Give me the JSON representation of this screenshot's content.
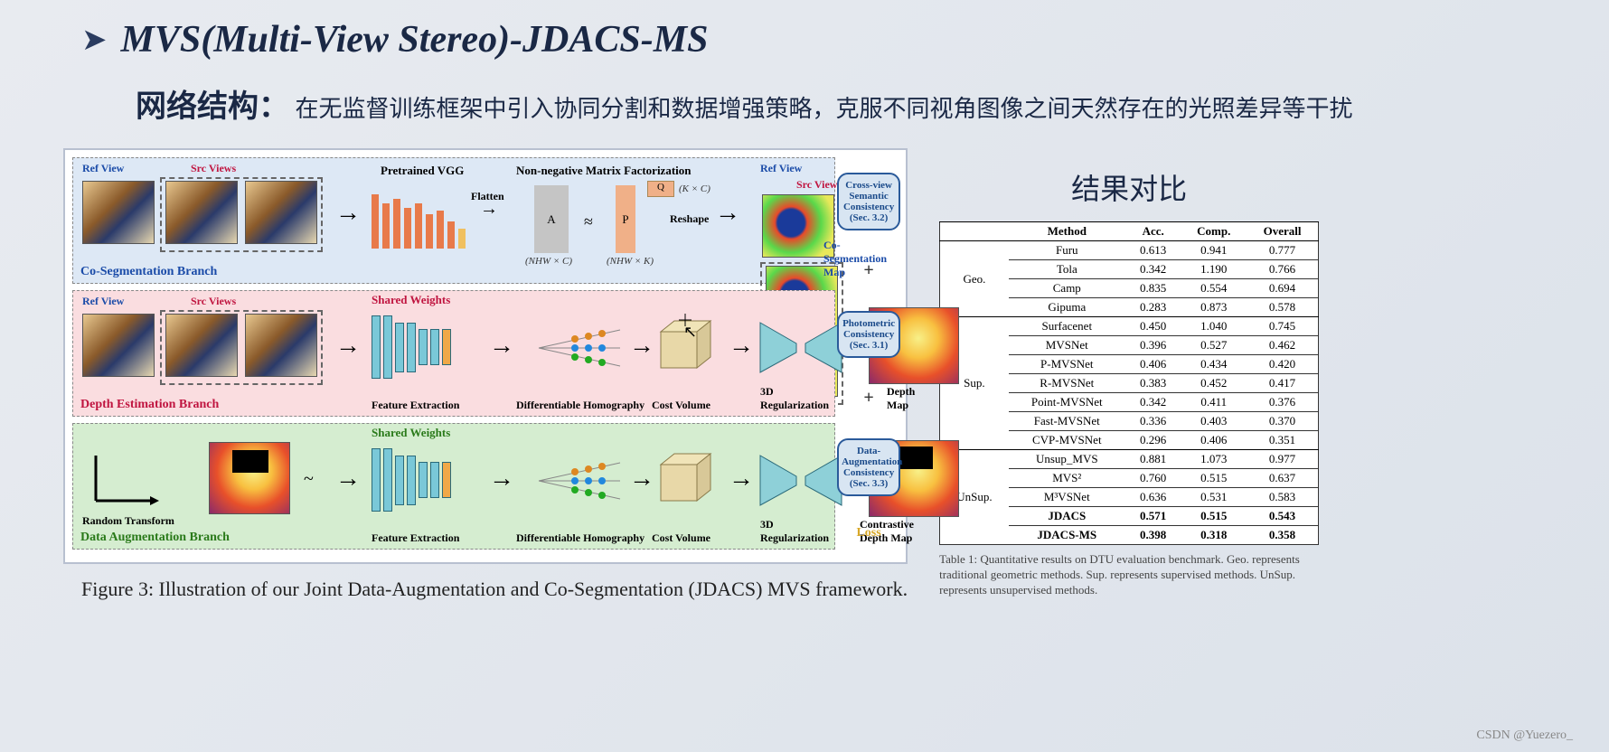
{
  "title": "MVS(Multi-View Stereo)-JDACS-MS",
  "subtitle_label": "网络结构：",
  "subtitle_text": "在无监督训练框架中引入协同分割和数据增强策略，克服不同视角图像之间天然存在的光照差异等干扰",
  "figure": {
    "branches": {
      "coseg": {
        "label": "Co-Segmentation Branch",
        "refview": "Ref View",
        "srcview": "Src Views",
        "pretrained": "Pretrained VGG",
        "flatten": "Flatten",
        "nmf": "Non-negative Matrix Factorization",
        "matA": "A",
        "matP": "P",
        "matQ": "Q",
        "dimA": "(NHW × C)",
        "dimP": "(NHW × K)",
        "dimQ": "(K × C)",
        "reshape": "Reshape",
        "map_ref": "Ref View",
        "map_src": "Src Views",
        "map_label": "Co-Segmentation Map",
        "bg_color": "#dde8f5",
        "vgg_heights": [
          60,
          50,
          55,
          45,
          50,
          38,
          42,
          30,
          22
        ]
      },
      "depth": {
        "label": "Depth Estimation Branch",
        "refview": "Ref View",
        "srcview": "Src Views",
        "shared": "Shared Weights",
        "feat": "Feature Extraction",
        "homog": "Differentiable Homography",
        "cost": "Cost Volume",
        "reg": "3D Regularization",
        "out": "Depth Map",
        "bg_color": "#fadde0"
      },
      "aug": {
        "label": "Data Augmentation Branch",
        "rand": "Random Transform",
        "shared": "Shared Weights",
        "feat": "Feature Extraction",
        "homog": "Differentiable Homography",
        "cost": "Cost Volume",
        "reg": "3D Regularization",
        "out": "Contrastive Depth Map",
        "bg_color": "#d5edd0"
      }
    },
    "loss": {
      "l1": "Cross-view Semantic Consistency (Sec. 3.2)",
      "l2": "Photometric Consistency (Sec. 3.1)",
      "l3": "Data-Augmentation Consistency (Sec. 3.3)",
      "label": "Loss"
    },
    "caption": "Figure 3: Illustration of our Joint Data-Augmentation and Co-Segmentation (JDACS) MVS framework."
  },
  "results": {
    "title": "结果对比",
    "headers": [
      "",
      "Method",
      "Acc.",
      "Comp.",
      "Overall"
    ],
    "groups": [
      {
        "name": "Geo.",
        "rows": [
          [
            "Furu",
            "0.613",
            "0.941",
            "0.777"
          ],
          [
            "Tola",
            "0.342",
            "1.190",
            "0.766"
          ],
          [
            "Camp",
            "0.835",
            "0.554",
            "0.694"
          ],
          [
            "Gipuma",
            "0.283",
            "0.873",
            "0.578"
          ]
        ]
      },
      {
        "name": "Sup.",
        "rows": [
          [
            "Surfacenet",
            "0.450",
            "1.040",
            "0.745"
          ],
          [
            "MVSNet",
            "0.396",
            "0.527",
            "0.462"
          ],
          [
            "P-MVSNet",
            "0.406",
            "0.434",
            "0.420"
          ],
          [
            "R-MVSNet",
            "0.383",
            "0.452",
            "0.417"
          ],
          [
            "Point-MVSNet",
            "0.342",
            "0.411",
            "0.376"
          ],
          [
            "Fast-MVSNet",
            "0.336",
            "0.403",
            "0.370"
          ],
          [
            "CVP-MVSNet",
            "0.296",
            "0.406",
            "0.351"
          ]
        ]
      },
      {
        "name": "UnSup.",
        "rows": [
          [
            "Unsup_MVS",
            "0.881",
            "1.073",
            "0.977"
          ],
          [
            "MVS²",
            "0.760",
            "0.515",
            "0.637"
          ],
          [
            "M³VSNet",
            "0.636",
            "0.531",
            "0.583"
          ]
        ],
        "bold_rows": [
          [
            "JDACS",
            "0.571",
            "0.515",
            "0.543"
          ],
          [
            "JDACS-MS",
            "0.398",
            "0.318",
            "0.358"
          ]
        ]
      }
    ],
    "caption": "Table 1: Quantitative results on DTU evaluation benchmark. Geo. represents traditional geometric methods. Sup. represents supervised methods. UnSup. represents unsupervised methods."
  },
  "watermark": "CSDN @Yuezero_",
  "colors": {
    "bg_gradient_from": "#e8ebf0",
    "bg_gradient_to": "#dce2ea",
    "title_color": "#1a2845",
    "branch_blue": "#dde8f5",
    "branch_pink": "#fadde0",
    "branch_green": "#d5edd0",
    "vgg_bar": "#e87a4a",
    "feat_bar": "#7ac8d8",
    "cube_fill": "#e8d8a8",
    "hourglass_fill": "#8ed0d8",
    "lossbox_border": "#2a5a9a",
    "lossbox_bg": "#d8e5f2"
  }
}
